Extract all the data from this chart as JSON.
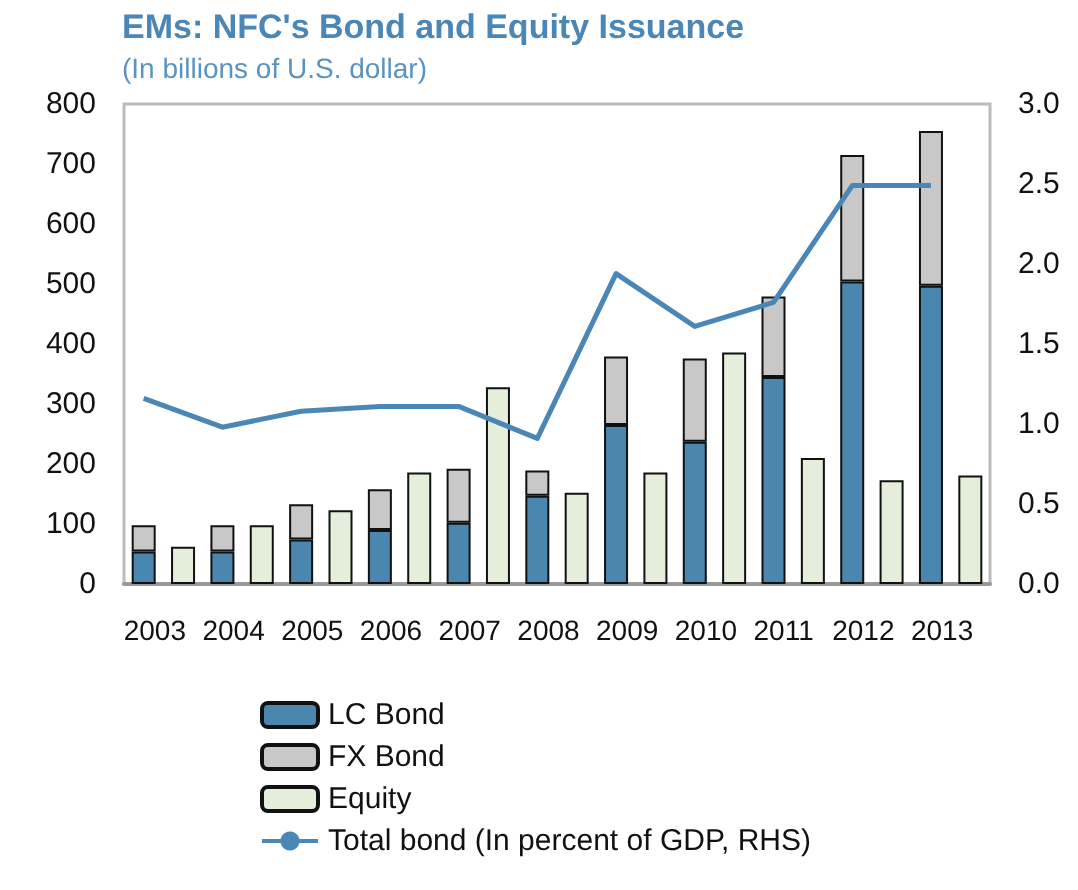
{
  "chart_data": {
    "type": "bar",
    "title": "EMs: NFC's Bond and Equity Issuance",
    "subtitle": "(In billions of U.S. dollar)",
    "categories": [
      "2003",
      null,
      "2004",
      null,
      "2005",
      null,
      "2006",
      null,
      "2007",
      null,
      "2008",
      null,
      "2009",
      null,
      "2010",
      null,
      "2011",
      null,
      "2012",
      null,
      "2013",
      null
    ],
    "stacked": true,
    "series": [
      {
        "name": "LC Bond",
        "color": "#4a86ad",
        "values": [
          54,
          null,
          54,
          null,
          74,
          null,
          90,
          null,
          102,
          null,
          147,
          null,
          265,
          null,
          237,
          null,
          345,
          null,
          504,
          null,
          497,
          null
        ]
      },
      {
        "name": "FX Bond",
        "color": "#c8c8c8",
        "values": [
          44,
          null,
          44,
          null,
          59,
          null,
          68,
          null,
          90,
          null,
          42,
          null,
          114,
          null,
          139,
          null,
          134,
          null,
          211,
          null,
          258,
          null
        ]
      },
      {
        "name": "Equity",
        "color": "#e5eedb",
        "values": [
          null,
          62,
          null,
          98,
          null,
          123,
          null,
          186,
          null,
          328,
          null,
          152,
          null,
          186,
          null,
          386,
          null,
          210,
          null,
          173,
          null,
          181
        ]
      },
      {
        "name": "Total bond (In percent of GDP, RHS)",
        "type": "line",
        "axis": "y2",
        "color": "#4a86b6",
        "values": [
          1.16,
          null,
          0.98,
          null,
          1.08,
          null,
          1.11,
          null,
          1.11,
          null,
          0.91,
          null,
          1.94,
          null,
          1.61,
          null,
          1.76,
          null,
          2.49,
          null,
          2.49,
          null
        ]
      }
    ],
    "ylim": [
      0,
      800
    ],
    "yticks": [
      0,
      100,
      200,
      300,
      400,
      500,
      600,
      700,
      800
    ],
    "y2lim": [
      0,
      3
    ],
    "y2ticks": [
      {
        "value": 0,
        "label": "0.0"
      },
      {
        "value": 0.5,
        "label": "0.5"
      },
      {
        "value": 1,
        "label": "1.0"
      },
      {
        "value": 1.5,
        "label": "1.5"
      },
      {
        "value": 2,
        "label": "2.0"
      },
      {
        "value": 2.5,
        "label": "2.5"
      },
      {
        "value": 3,
        "label": "3.0"
      }
    ],
    "grid": false,
    "legend": "bottom",
    "marker": "none"
  }
}
